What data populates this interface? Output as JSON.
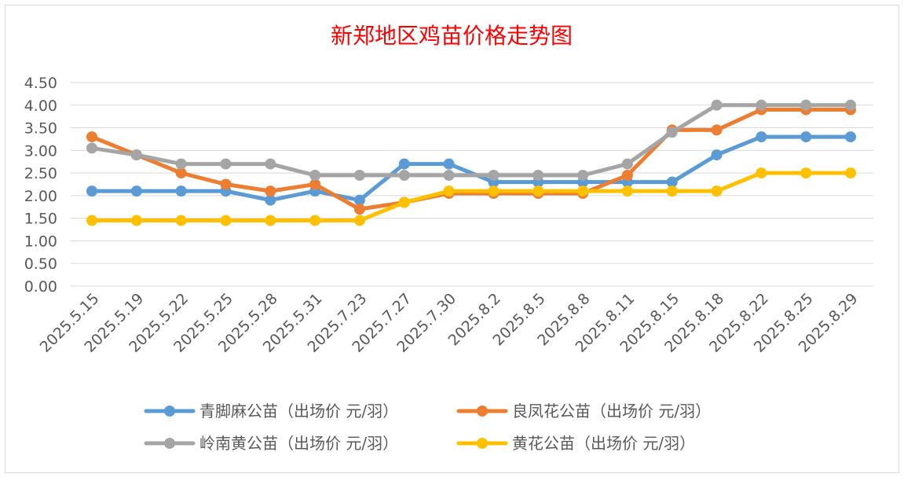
{
  "chart_data": {
    "type": "line",
    "title": "新郑地区鸡苗价格走势图",
    "xlabel": "",
    "ylabel": "",
    "ylim": [
      0,
      4.5
    ],
    "y_ticks": [
      "0.00",
      "0.50",
      "1.00",
      "1.50",
      "2.00",
      "2.50",
      "3.00",
      "3.50",
      "4.00",
      "4.50"
    ],
    "categories": [
      "2025.5.15",
      "2025.5.19",
      "2025.5.22",
      "2025.5.25",
      "2025.5.28",
      "2025.5.31",
      "2025.7.23",
      "2025.7.27",
      "2025.7.30",
      "2025.8.2",
      "2025.8.5",
      "2025.8.8",
      "2025.8.11",
      "2025.8.15",
      "2025.8.18",
      "2025.8.22",
      "2025.8.25",
      "2025.8.29"
    ],
    "grid": true,
    "legend_position": "bottom",
    "series": [
      {
        "name": "青脚麻公苗（出场价 元/羽）",
        "color": "#5B9BD5",
        "values": [
          2.1,
          2.1,
          2.1,
          2.1,
          1.9,
          2.1,
          1.9,
          2.7,
          2.7,
          2.3,
          2.3,
          2.3,
          2.3,
          2.3,
          2.9,
          3.3,
          3.3,
          3.3
        ]
      },
      {
        "name": "良凤花公苗（出场价 元/羽）",
        "color": "#ED7D31",
        "values": [
          3.3,
          2.9,
          2.5,
          2.25,
          2.1,
          2.25,
          1.7,
          1.85,
          2.05,
          2.05,
          2.05,
          2.05,
          2.45,
          3.45,
          3.45,
          3.9,
          3.9,
          3.9
        ]
      },
      {
        "name": "岭南黄公苗（出场价 元/羽）",
        "color": "#A5A5A5",
        "values": [
          3.05,
          2.9,
          2.7,
          2.7,
          2.7,
          2.45,
          2.45,
          2.45,
          2.45,
          2.45,
          2.45,
          2.45,
          2.7,
          3.4,
          4.0,
          4.0,
          4.0,
          4.0
        ]
      },
      {
        "name": "黄花公苗（出场价 元/羽）",
        "color": "#FFC000",
        "values": [
          1.45,
          1.45,
          1.45,
          1.45,
          1.45,
          1.45,
          1.45,
          1.85,
          2.1,
          2.1,
          2.1,
          2.1,
          2.1,
          2.1,
          2.1,
          2.5,
          2.5,
          2.5
        ]
      }
    ]
  },
  "colors": {
    "title": "#FF0000",
    "grid": "#D9D9D9",
    "text": "#595959",
    "border": "#D9D9D9"
  }
}
